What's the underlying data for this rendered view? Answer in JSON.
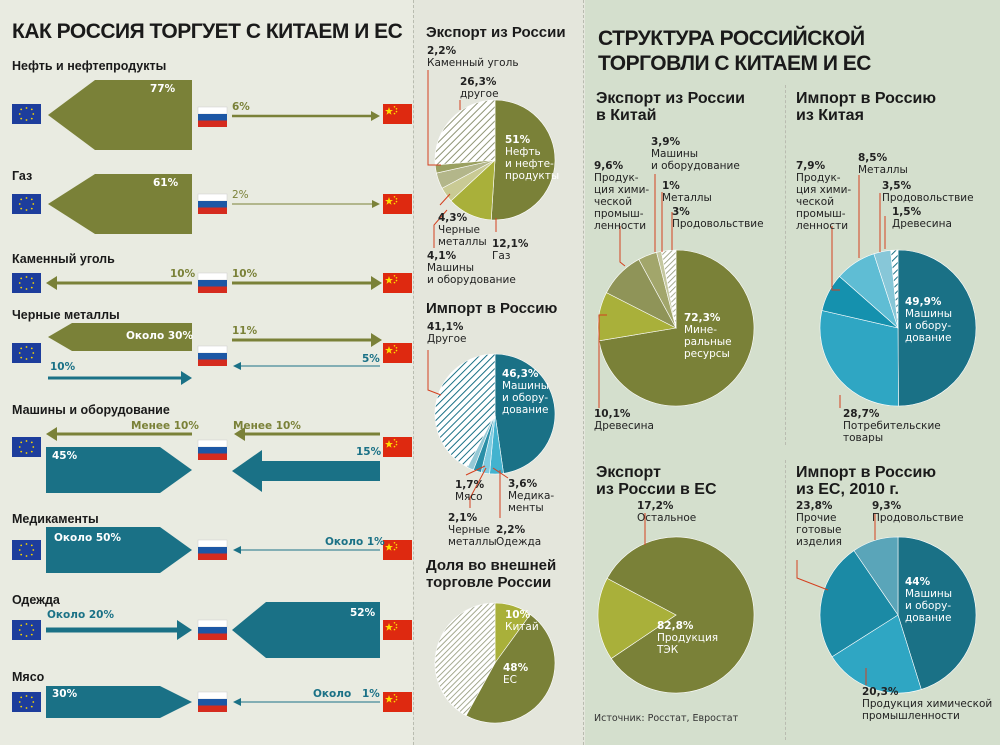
{
  "left": {
    "title": "КАК РОССИЯ ТОРГУЕТ С КИТАЕМ И ЕС",
    "rows": [
      {
        "label": "Нефть и нефтепродукты",
        "eu_value": "77%",
        "cn_value": "6%"
      },
      {
        "label": "Газ",
        "eu_value": "61%",
        "cn_value": "2%"
      },
      {
        "label": "Каменный уголь",
        "eu_value": "10%",
        "cn_value": "10%"
      },
      {
        "label": "Черные металлы",
        "eu_value": "Около 30%",
        "cn_value": "11%",
        "eu_import": "10%",
        "cn_import": "5%"
      },
      {
        "label": "Машины и оборудование",
        "eu_value": "Менее 10%",
        "cn_value": "Менее 10%",
        "eu_import": "45%",
        "cn_import": "15%"
      },
      {
        "label": "Медикаменты",
        "eu_import": "Около 50%",
        "cn_import": "Около 1%"
      },
      {
        "label": "Одежда",
        "eu_import": "Около 20%",
        "cn_import": "52%"
      },
      {
        "label": "Мясо",
        "eu_import": "30%",
        "cn_import_text": "Около",
        "cn_import_pct": "1%"
      }
    ]
  },
  "mid": {
    "export_title": "Экспорт из России",
    "import_title": "Импорт в Россию",
    "share_title": "Доля во внешней торговле России",
    "export_labels": {
      "coal": [
        "2,2%",
        "Каменный уголь"
      ],
      "other": [
        "26,3%",
        "другое"
      ],
      "oil": [
        "51%",
        "Нефть",
        "и нефте-",
        "продукты"
      ],
      "metals": [
        "4,3%",
        "Черные",
        "металлы"
      ],
      "machines": [
        "4,1%",
        "Машины",
        "и оборудование"
      ],
      "gas": [
        "12,1%",
        "Газ"
      ]
    },
    "import_labels": {
      "other": [
        "41,1%",
        "Другое"
      ],
      "machines": [
        "46,3%",
        "Машины",
        "и обору-",
        "дование"
      ],
      "meat": [
        "1,7%",
        "Мясо"
      ],
      "metals": [
        "2,1%",
        "Черные",
        "металлы"
      ],
      "clothes": [
        "2,2%",
        "Одежда"
      ],
      "meds": [
        "3,6%",
        "Медика-",
        "менты"
      ]
    },
    "share_labels": {
      "china": [
        "10%",
        "Китай"
      ],
      "eu": [
        "48%",
        "ЕС"
      ]
    }
  },
  "right": {
    "title_line1": "СТРУКТУРА РОССИЙСКОЙ",
    "title_line2": "ТОРГОВЛИ С КИТАЕМ И ЕС",
    "p1_title": [
      "Экспорт из России",
      "в Китай"
    ],
    "p2_title": [
      "Импорт в Россию",
      "из Китая"
    ],
    "p3_title": [
      "Экспорт",
      "из России в ЕС"
    ],
    "p4_title": [
      "Импорт в Россию",
      "из ЕС, 2010 г."
    ],
    "p1_labels": {
      "chem": [
        "9,6%",
        "Продук-",
        "ция хими-",
        "ческой",
        "промыш-",
        "ленности"
      ],
      "mach": [
        "3,9%",
        "Машины",
        "и оборудование"
      ],
      "metals": [
        "1%",
        "Металлы"
      ],
      "food": [
        "3%",
        "Продовольствие"
      ],
      "min": [
        "72,3%",
        "Мине-",
        "ральные",
        "ресурсы"
      ],
      "wood": [
        "10,1%",
        "Древесина"
      ]
    },
    "p2_labels": {
      "chem": [
        "7,9%",
        "Продук-",
        "ция хими-",
        "ческой",
        "промыш-",
        "ленности"
      ],
      "metals": [
        "8,5%",
        "Металлы"
      ],
      "food": [
        "3,5%",
        "Продовольствие"
      ],
      "wood": [
        "1,5%",
        "Древесина"
      ],
      "mach": [
        "49,9%",
        "Машины",
        "и обору-",
        "дование"
      ],
      "cons": [
        "28,7%",
        "Потребительские",
        "товары"
      ]
    },
    "p3_labels": {
      "other": [
        "17,2%",
        "Остальное"
      ],
      "tek": [
        "82,8%",
        "Продукция",
        "ТЭК"
      ]
    },
    "p4_labels": {
      "other": [
        "23,8%",
        "Прочие",
        "готовые",
        "изделия"
      ],
      "food": [
        "9,3%",
        "Продовольствие"
      ],
      "mach": [
        "44%",
        "Машины",
        "и обору-",
        "дование"
      ],
      "chem": [
        "20,3%",
        "Продукция химической",
        "промышленности"
      ]
    },
    "source": "Источник: Росстат, Евростат"
  },
  "colors": {
    "olive": "#7a8138",
    "teal": "#1a7186",
    "light_olive": "#a9b03a",
    "sky": "#43b3cf",
    "red": "#de2910",
    "eu_blue": "#1d3d9c"
  },
  "chart_data": [
    {
      "type": "pie",
      "title": "Экспорт из России",
      "series": [
        {
          "values": [
            51,
            12.1,
            4.1,
            4.3,
            2.2,
            26.3
          ]
        }
      ],
      "categories": [
        "Нефть и нефтепродукты",
        "Газ",
        "Машины и оборудование",
        "Черные металлы",
        "Каменный уголь",
        "другое"
      ]
    },
    {
      "type": "pie",
      "title": "Импорт в Россию",
      "series": [
        {
          "values": [
            46.3,
            3.6,
            2.2,
            2.1,
            1.7,
            41.1
          ]
        }
      ],
      "categories": [
        "Машины и оборудование",
        "Медикаменты",
        "Одежда",
        "Черные металлы",
        "Мясо",
        "Другое"
      ]
    },
    {
      "type": "pie",
      "title": "Доля во внешней торговле России",
      "series": [
        {
          "values": [
            10,
            48,
            42
          ]
        }
      ],
      "categories": [
        "Китай",
        "ЕС",
        ""
      ]
    },
    {
      "type": "pie",
      "title": "Экспорт из России в Китай",
      "series": [
        {
          "values": [
            72.3,
            10.1,
            9.6,
            3.9,
            1,
            3
          ]
        }
      ],
      "categories": [
        "Минеральные ресурсы",
        "Древесина",
        "Продукция химической промышленности",
        "Машины и оборудование",
        "Металлы",
        "Продовольствие"
      ]
    },
    {
      "type": "pie",
      "title": "Импорт в Россию из Китая",
      "series": [
        {
          "values": [
            49.9,
            28.7,
            7.9,
            8.5,
            3.5,
            1.5
          ]
        }
      ],
      "categories": [
        "Машины и оборудование",
        "Потребительские товары",
        "Продукция химической промышленности",
        "Металлы",
        "Продовольствие",
        "Древесина"
      ]
    },
    {
      "type": "pie",
      "title": "Экспорт из России в ЕС",
      "series": [
        {
          "values": [
            82.8,
            17.2
          ]
        }
      ],
      "categories": [
        "Продукция ТЭК",
        "Остальное"
      ]
    },
    {
      "type": "pie",
      "title": "Импорт в Россию из ЕС, 2010 г.",
      "series": [
        {
          "values": [
            44,
            20.3,
            23.8,
            9.3
          ]
        }
      ],
      "categories": [
        "Машины и оборудование",
        "Продукция химической промышленности",
        "Прочие готовые изделия",
        "Продовольствие"
      ]
    }
  ]
}
